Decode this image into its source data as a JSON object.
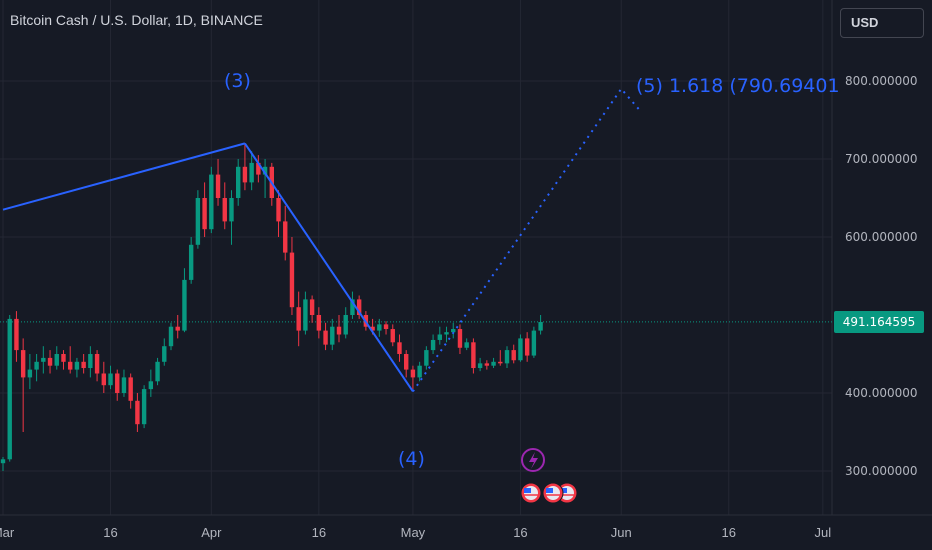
{
  "header": {
    "symbol": "Bitcoin Cash / U.S. Dollar, 1D, BINANCE"
  },
  "currency": "USD",
  "annotations": {
    "wave3": "(3)",
    "wave4": "(4)",
    "wave5": "(5) 1.618 (790.69401"
  },
  "current_price": "491.164595",
  "colors": {
    "up": "#089981",
    "down": "#f23645",
    "wave_line": "#2962ff",
    "background": "#161a25",
    "grid": "#242733"
  },
  "chart_data": {
    "type": "candlestick",
    "y_axis": {
      "min": 280,
      "max": 830,
      "ticks": [
        "300.000000",
        "400.000000",
        "600.000000",
        "700.000000",
        "800.000000"
      ],
      "tick_values": [
        300,
        400,
        600,
        700,
        800
      ]
    },
    "x_axis": {
      "ticks": [
        "Mar",
        "16",
        "Apr",
        "16",
        "May",
        "16",
        "Jun",
        "16",
        "Jul"
      ],
      "tick_days": [
        0,
        16,
        31,
        47,
        61,
        77,
        92,
        108,
        122
      ]
    },
    "last_price": 491.164595,
    "candles": [
      {
        "d": 0,
        "o": 310,
        "h": 318,
        "l": 300,
        "c": 315
      },
      {
        "d": 1,
        "o": 315,
        "h": 500,
        "l": 312,
        "c": 495
      },
      {
        "d": 2,
        "o": 495,
        "h": 505,
        "l": 440,
        "c": 455
      },
      {
        "d": 3,
        "o": 455,
        "h": 470,
        "l": 350,
        "c": 420
      },
      {
        "d": 4,
        "o": 420,
        "h": 450,
        "l": 405,
        "c": 430
      },
      {
        "d": 5,
        "o": 430,
        "h": 450,
        "l": 415,
        "c": 440
      },
      {
        "d": 6,
        "o": 440,
        "h": 460,
        "l": 425,
        "c": 445
      },
      {
        "d": 7,
        "o": 445,
        "h": 455,
        "l": 425,
        "c": 435
      },
      {
        "d": 8,
        "o": 435,
        "h": 460,
        "l": 430,
        "c": 450
      },
      {
        "d": 9,
        "o": 450,
        "h": 455,
        "l": 430,
        "c": 440
      },
      {
        "d": 10,
        "o": 440,
        "h": 460,
        "l": 425,
        "c": 430
      },
      {
        "d": 11,
        "o": 430,
        "h": 445,
        "l": 420,
        "c": 440
      },
      {
        "d": 12,
        "o": 440,
        "h": 450,
        "l": 425,
        "c": 432
      },
      {
        "d": 13,
        "o": 432,
        "h": 460,
        "l": 420,
        "c": 450
      },
      {
        "d": 14,
        "o": 450,
        "h": 455,
        "l": 415,
        "c": 425
      },
      {
        "d": 15,
        "o": 425,
        "h": 440,
        "l": 400,
        "c": 410
      },
      {
        "d": 16,
        "o": 410,
        "h": 435,
        "l": 405,
        "c": 425
      },
      {
        "d": 17,
        "o": 425,
        "h": 430,
        "l": 390,
        "c": 400
      },
      {
        "d": 18,
        "o": 400,
        "h": 430,
        "l": 395,
        "c": 420
      },
      {
        "d": 19,
        "o": 420,
        "h": 425,
        "l": 380,
        "c": 390
      },
      {
        "d": 20,
        "o": 390,
        "h": 400,
        "l": 350,
        "c": 360
      },
      {
        "d": 21,
        "o": 360,
        "h": 410,
        "l": 355,
        "c": 405
      },
      {
        "d": 22,
        "o": 405,
        "h": 430,
        "l": 395,
        "c": 415
      },
      {
        "d": 23,
        "o": 415,
        "h": 445,
        "l": 410,
        "c": 440
      },
      {
        "d": 24,
        "o": 440,
        "h": 470,
        "l": 435,
        "c": 460
      },
      {
        "d": 25,
        "o": 460,
        "h": 490,
        "l": 455,
        "c": 485
      },
      {
        "d": 26,
        "o": 485,
        "h": 500,
        "l": 470,
        "c": 480
      },
      {
        "d": 27,
        "o": 480,
        "h": 560,
        "l": 478,
        "c": 545
      },
      {
        "d": 28,
        "o": 545,
        "h": 600,
        "l": 540,
        "c": 590
      },
      {
        "d": 29,
        "o": 590,
        "h": 660,
        "l": 585,
        "c": 650
      },
      {
        "d": 30,
        "o": 650,
        "h": 670,
        "l": 600,
        "c": 610
      },
      {
        "d": 31,
        "o": 610,
        "h": 690,
        "l": 605,
        "c": 680
      },
      {
        "d": 32,
        "o": 680,
        "h": 700,
        "l": 640,
        "c": 650
      },
      {
        "d": 33,
        "o": 650,
        "h": 670,
        "l": 610,
        "c": 620
      },
      {
        "d": 34,
        "o": 620,
        "h": 660,
        "l": 590,
        "c": 650
      },
      {
        "d": 35,
        "o": 650,
        "h": 700,
        "l": 640,
        "c": 690
      },
      {
        "d": 36,
        "o": 690,
        "h": 720,
        "l": 660,
        "c": 670
      },
      {
        "d": 37,
        "o": 670,
        "h": 710,
        "l": 660,
        "c": 695
      },
      {
        "d": 38,
        "o": 695,
        "h": 705,
        "l": 670,
        "c": 680
      },
      {
        "d": 39,
        "o": 680,
        "h": 700,
        "l": 650,
        "c": 690
      },
      {
        "d": 40,
        "o": 690,
        "h": 695,
        "l": 640,
        "c": 650
      },
      {
        "d": 41,
        "o": 650,
        "h": 660,
        "l": 600,
        "c": 620
      },
      {
        "d": 42,
        "o": 620,
        "h": 640,
        "l": 570,
        "c": 580
      },
      {
        "d": 43,
        "o": 580,
        "h": 600,
        "l": 500,
        "c": 510
      },
      {
        "d": 44,
        "o": 510,
        "h": 530,
        "l": 460,
        "c": 480
      },
      {
        "d": 45,
        "o": 480,
        "h": 530,
        "l": 475,
        "c": 520
      },
      {
        "d": 46,
        "o": 520,
        "h": 525,
        "l": 490,
        "c": 500
      },
      {
        "d": 47,
        "o": 500,
        "h": 510,
        "l": 470,
        "c": 480
      },
      {
        "d": 48,
        "o": 480,
        "h": 490,
        "l": 455,
        "c": 462
      },
      {
        "d": 49,
        "o": 462,
        "h": 495,
        "l": 455,
        "c": 485
      },
      {
        "d": 50,
        "o": 485,
        "h": 500,
        "l": 465,
        "c": 475
      },
      {
        "d": 51,
        "o": 475,
        "h": 510,
        "l": 470,
        "c": 500
      },
      {
        "d": 52,
        "o": 500,
        "h": 530,
        "l": 495,
        "c": 520
      },
      {
        "d": 53,
        "o": 520,
        "h": 525,
        "l": 495,
        "c": 500
      },
      {
        "d": 54,
        "o": 500,
        "h": 505,
        "l": 480,
        "c": 485
      },
      {
        "d": 55,
        "o": 485,
        "h": 495,
        "l": 475,
        "c": 480
      },
      {
        "d": 56,
        "o": 480,
        "h": 495,
        "l": 472,
        "c": 488
      },
      {
        "d": 57,
        "o": 488,
        "h": 492,
        "l": 475,
        "c": 482
      },
      {
        "d": 58,
        "o": 482,
        "h": 488,
        "l": 460,
        "c": 465
      },
      {
        "d": 59,
        "o": 465,
        "h": 475,
        "l": 440,
        "c": 450
      },
      {
        "d": 60,
        "o": 450,
        "h": 455,
        "l": 420,
        "c": 430
      },
      {
        "d": 61,
        "o": 430,
        "h": 435,
        "l": 405,
        "c": 420
      },
      {
        "d": 62,
        "o": 420,
        "h": 440,
        "l": 415,
        "c": 435
      },
      {
        "d": 63,
        "o": 435,
        "h": 460,
        "l": 430,
        "c": 455
      },
      {
        "d": 64,
        "o": 455,
        "h": 475,
        "l": 450,
        "c": 468
      },
      {
        "d": 65,
        "o": 468,
        "h": 485,
        "l": 462,
        "c": 475
      },
      {
        "d": 66,
        "o": 475,
        "h": 485,
        "l": 465,
        "c": 478
      },
      {
        "d": 67,
        "o": 478,
        "h": 490,
        "l": 470,
        "c": 482
      },
      {
        "d": 68,
        "o": 482,
        "h": 488,
        "l": 450,
        "c": 458
      },
      {
        "d": 69,
        "o": 458,
        "h": 470,
        "l": 455,
        "c": 465
      },
      {
        "d": 70,
        "o": 465,
        "h": 470,
        "l": 425,
        "c": 432
      },
      {
        "d": 71,
        "o": 432,
        "h": 445,
        "l": 428,
        "c": 438
      },
      {
        "d": 72,
        "o": 438,
        "h": 442,
        "l": 430,
        "c": 435
      },
      {
        "d": 73,
        "o": 435,
        "h": 445,
        "l": 432,
        "c": 440
      },
      {
        "d": 74,
        "o": 440,
        "h": 455,
        "l": 435,
        "c": 438
      },
      {
        "d": 75,
        "o": 438,
        "h": 460,
        "l": 432,
        "c": 455
      },
      {
        "d": 76,
        "o": 455,
        "h": 462,
        "l": 438,
        "c": 442
      },
      {
        "d": 77,
        "o": 442,
        "h": 475,
        "l": 440,
        "c": 470
      },
      {
        "d": 78,
        "o": 470,
        "h": 478,
        "l": 440,
        "c": 448
      },
      {
        "d": 79,
        "o": 448,
        "h": 485,
        "l": 445,
        "c": 480
      },
      {
        "d": 80,
        "o": 480,
        "h": 500,
        "l": 475,
        "c": 491
      }
    ],
    "wave_lines": [
      {
        "points": [
          [
            0,
            635
          ],
          [
            36,
            720
          ]
        ]
      },
      {
        "points": [
          [
            36,
            720
          ],
          [
            61,
            402
          ]
        ]
      }
    ],
    "projection": {
      "points": [
        [
          61,
          402
        ],
        [
          92,
          790
        ],
        [
          95,
          760
        ]
      ]
    }
  }
}
